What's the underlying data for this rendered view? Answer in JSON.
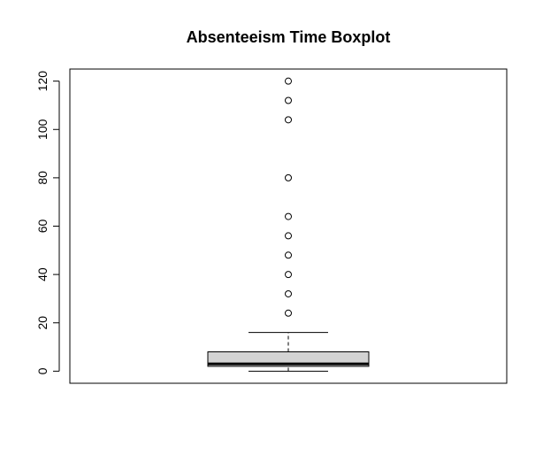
{
  "chart_data": {
    "type": "boxplot",
    "title": "Absenteeism Time Boxplot",
    "xlabel": "",
    "ylabel": "",
    "ylim": [
      -5,
      125
    ],
    "yticks": [
      0,
      20,
      40,
      60,
      80,
      100,
      120
    ],
    "box": {
      "lower_whisker": 0,
      "q1": 2,
      "median": 3,
      "q3": 8,
      "upper_whisker": 16
    },
    "outliers": [
      24,
      32,
      40,
      48,
      56,
      64,
      80,
      104,
      112,
      120
    ],
    "colors": {
      "box_fill": "#d3d3d3",
      "line": "#000000"
    }
  }
}
